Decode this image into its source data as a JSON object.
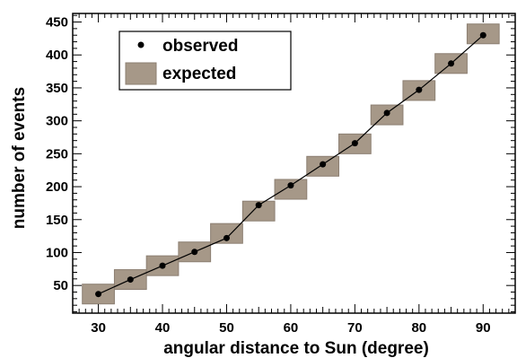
{
  "chart_data": {
    "type": "scatter",
    "title": "",
    "xlabel": "angular distance to Sun (degree)",
    "ylabel": "number of events",
    "xlim": [
      26,
      95
    ],
    "ylim": [
      8,
      463
    ],
    "x_major_ticks": [
      30,
      40,
      50,
      60,
      70,
      80,
      90
    ],
    "x_minor_step": 1,
    "y_major_ticks": [
      50,
      100,
      150,
      200,
      250,
      300,
      350,
      400,
      450
    ],
    "y_minor_step": 10,
    "legend_placement": "top-left",
    "series": [
      {
        "name": "observed",
        "style": "markers connected by line",
        "x": [
          30,
          35,
          40,
          45,
          50,
          55,
          60,
          65,
          70,
          75,
          80,
          85,
          90
        ],
        "y": [
          37,
          59,
          80,
          101,
          122,
          172,
          202,
          234,
          266,
          312,
          347,
          387,
          430
        ]
      },
      {
        "name": "expected",
        "style": "boxes",
        "x": [
          30,
          35,
          40,
          45,
          50,
          55,
          60,
          65,
          70,
          75,
          80,
          85,
          90
        ],
        "y": [
          37,
          59,
          80,
          101,
          129,
          163,
          196,
          231,
          265,
          309,
          346,
          387,
          432
        ],
        "half_width_x": 2.5,
        "half_height_y": 15
      }
    ],
    "colors": {
      "marker": "#000000",
      "line": "#000000",
      "box_fill": "#a69888",
      "box_stroke": "#8c7f72"
    }
  }
}
